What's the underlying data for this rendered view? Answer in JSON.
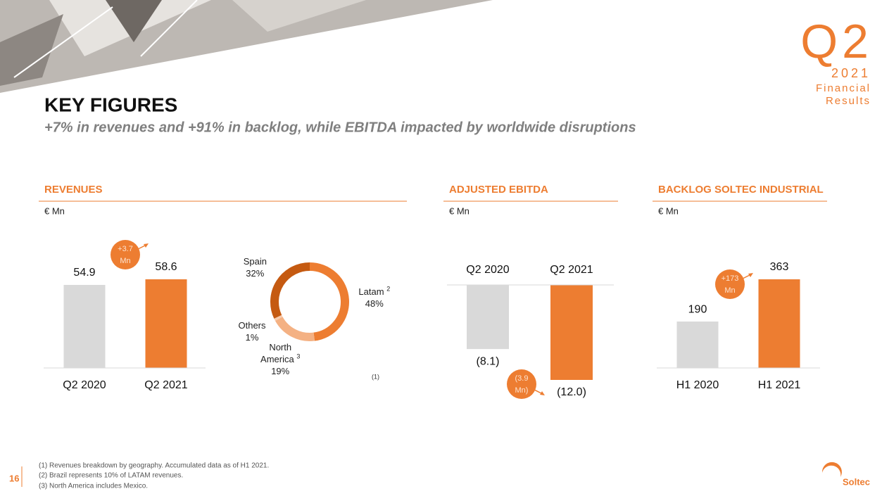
{
  "header": {
    "title": "KEY FIGURES",
    "subtitle": "+7% in revenues and +91% in backlog, while EBITDA impacted by worldwide disruptions",
    "badge": {
      "quarter": "Q2",
      "year": "2021",
      "line1": "Financial",
      "line2": "Results"
    }
  },
  "chart_data": [
    {
      "type": "bar",
      "title": "REVENUES",
      "unit": "€ Mn",
      "categories": [
        "Q2 2020",
        "Q2 2021"
      ],
      "values": [
        54.9,
        58.6
      ],
      "colors": [
        "#d9d9d9",
        "#ed7d31"
      ],
      "annotation": [
        "+3.7",
        "Mn"
      ]
    },
    {
      "type": "pie",
      "categories": [
        "Latam",
        "North America",
        "Others",
        "Spain"
      ],
      "category_notes": [
        "2",
        "3",
        null,
        null
      ],
      "values": [
        48,
        19,
        1,
        32
      ],
      "value_labels": [
        "48%",
        "19%",
        "1%",
        "32%"
      ],
      "colors": [
        "#ed7d31",
        "#f4b183",
        "#f8cbad",
        "#c55a11"
      ],
      "note": "(1)"
    },
    {
      "type": "bar",
      "title": "ADJUSTED EBITDA",
      "unit": "€ Mn",
      "categories": [
        "Q2 2020",
        "Q2 2021"
      ],
      "values": [
        -8.1,
        -12.0
      ],
      "value_labels": [
        "(8.1)",
        "(12.0)"
      ],
      "colors": [
        "#d9d9d9",
        "#ed7d31"
      ],
      "annotation": [
        "(3.9",
        "Mn)"
      ]
    },
    {
      "type": "bar",
      "title": "BACKLOG SOLTEC INDUSTRIAL",
      "unit": "€ Mn",
      "categories": [
        "H1 2020",
        "H1 2021"
      ],
      "values": [
        190,
        363
      ],
      "colors": [
        "#d9d9d9",
        "#ed7d31"
      ],
      "annotation": [
        "+173",
        "Mn"
      ]
    }
  ],
  "footer": {
    "page": "16",
    "notes": [
      "(1) Revenues breakdown by geography. Accumulated data as of H1 2021.",
      "(2) Brazil represents 10% of LATAM revenues.",
      "(3) North America includes Mexico."
    ],
    "brand": "Soltec"
  }
}
